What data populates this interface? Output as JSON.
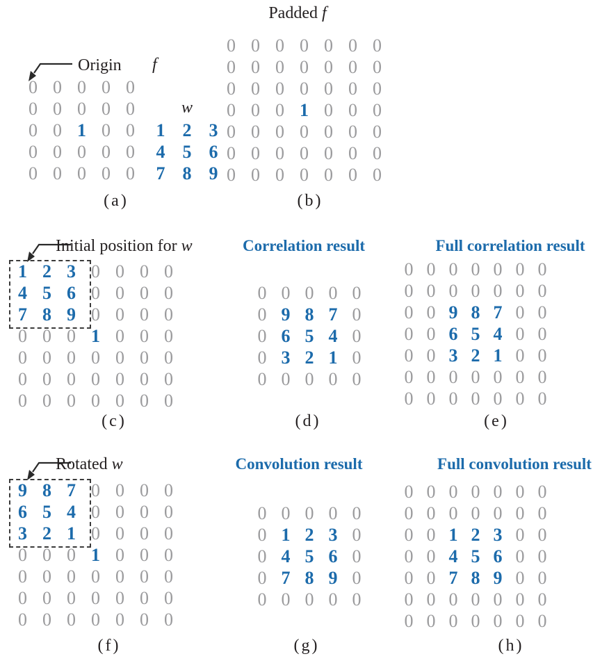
{
  "colors": {
    "accent_blue": "#1c6bab",
    "zero_gray": "#9b9b9d",
    "text_black": "#231f20"
  },
  "panel_a": {
    "origin_label": "Origin",
    "f_label": "f",
    "w_label": "w",
    "caption": "(a)",
    "f_grid": [
      [
        "0",
        "0",
        "0",
        "0",
        "0"
      ],
      [
        "0",
        "0",
        "0",
        "0",
        "0"
      ],
      [
        "0",
        "0",
        "1",
        "0",
        "0"
      ],
      [
        "0",
        "0",
        "0",
        "0",
        "0"
      ],
      [
        "0",
        "0",
        "0",
        "0",
        "0"
      ]
    ],
    "w_grid": [
      [
        "1",
        "2",
        "3"
      ],
      [
        "4",
        "5",
        "6"
      ],
      [
        "7",
        "8",
        "9"
      ]
    ]
  },
  "panel_b": {
    "title_roman": "Padded",
    "title_italic": "f",
    "caption": "(b)",
    "grid": [
      [
        "0",
        "0",
        "0",
        "0",
        "0",
        "0",
        "0"
      ],
      [
        "0",
        "0",
        "0",
        "0",
        "0",
        "0",
        "0"
      ],
      [
        "0",
        "0",
        "0",
        "0",
        "0",
        "0",
        "0"
      ],
      [
        "0",
        "0",
        "0",
        "1",
        "0",
        "0",
        "0"
      ],
      [
        "0",
        "0",
        "0",
        "0",
        "0",
        "0",
        "0"
      ],
      [
        "0",
        "0",
        "0",
        "0",
        "0",
        "0",
        "0"
      ],
      [
        "0",
        "0",
        "0",
        "0",
        "0",
        "0",
        "0"
      ]
    ]
  },
  "panel_c": {
    "label_roman": "Initial position for",
    "label_italic": "w",
    "caption": "(c)",
    "grid": [
      [
        "1",
        "2",
        "3",
        "0",
        "0",
        "0",
        "0"
      ],
      [
        "4",
        "5",
        "6",
        "0",
        "0",
        "0",
        "0"
      ],
      [
        "7",
        "8",
        "9",
        "0",
        "0",
        "0",
        "0"
      ],
      [
        "0",
        "0",
        "0",
        "1",
        "0",
        "0",
        "0"
      ],
      [
        "0",
        "0",
        "0",
        "0",
        "0",
        "0",
        "0"
      ],
      [
        "0",
        "0",
        "0",
        "0",
        "0",
        "0",
        "0"
      ],
      [
        "0",
        "0",
        "0",
        "0",
        "0",
        "0",
        "0"
      ]
    ]
  },
  "panel_d": {
    "title": "Correlation result",
    "caption": "(d)",
    "grid": [
      [
        "0",
        "0",
        "0",
        "0",
        "0"
      ],
      [
        "0",
        "9",
        "8",
        "7",
        "0"
      ],
      [
        "0",
        "6",
        "5",
        "4",
        "0"
      ],
      [
        "0",
        "3",
        "2",
        "1",
        "0"
      ],
      [
        "0",
        "0",
        "0",
        "0",
        "0"
      ]
    ]
  },
  "panel_e": {
    "title": "Full correlation result",
    "caption": "(e)",
    "grid": [
      [
        "0",
        "0",
        "0",
        "0",
        "0",
        "0",
        "0"
      ],
      [
        "0",
        "0",
        "0",
        "0",
        "0",
        "0",
        "0"
      ],
      [
        "0",
        "0",
        "9",
        "8",
        "7",
        "0",
        "0"
      ],
      [
        "0",
        "0",
        "6",
        "5",
        "4",
        "0",
        "0"
      ],
      [
        "0",
        "0",
        "3",
        "2",
        "1",
        "0",
        "0"
      ],
      [
        "0",
        "0",
        "0",
        "0",
        "0",
        "0",
        "0"
      ],
      [
        "0",
        "0",
        "0",
        "0",
        "0",
        "0",
        "0"
      ]
    ]
  },
  "panel_f": {
    "label_roman": "Rotated",
    "label_italic": "w",
    "caption": "(f)",
    "grid": [
      [
        "9",
        "8",
        "7",
        "0",
        "0",
        "0",
        "0"
      ],
      [
        "6",
        "5",
        "4",
        "0",
        "0",
        "0",
        "0"
      ],
      [
        "3",
        "2",
        "1",
        "0",
        "0",
        "0",
        "0"
      ],
      [
        "0",
        "0",
        "0",
        "1",
        "0",
        "0",
        "0"
      ],
      [
        "0",
        "0",
        "0",
        "0",
        "0",
        "0",
        "0"
      ],
      [
        "0",
        "0",
        "0",
        "0",
        "0",
        "0",
        "0"
      ],
      [
        "0",
        "0",
        "0",
        "0",
        "0",
        "0",
        "0"
      ]
    ]
  },
  "panel_g": {
    "title": "Convolution result",
    "caption": "(g)",
    "grid": [
      [
        "0",
        "0",
        "0",
        "0",
        "0"
      ],
      [
        "0",
        "1",
        "2",
        "3",
        "0"
      ],
      [
        "0",
        "4",
        "5",
        "6",
        "0"
      ],
      [
        "0",
        "7",
        "8",
        "9",
        "0"
      ],
      [
        "0",
        "0",
        "0",
        "0",
        "0"
      ]
    ]
  },
  "panel_h": {
    "title": "Full convolution result",
    "caption": "(h)",
    "grid": [
      [
        "0",
        "0",
        "0",
        "0",
        "0",
        "0",
        "0"
      ],
      [
        "0",
        "0",
        "0",
        "0",
        "0",
        "0",
        "0"
      ],
      [
        "0",
        "0",
        "1",
        "2",
        "3",
        "0",
        "0"
      ],
      [
        "0",
        "0",
        "4",
        "5",
        "6",
        "0",
        "0"
      ],
      [
        "0",
        "0",
        "7",
        "8",
        "9",
        "0",
        "0"
      ],
      [
        "0",
        "0",
        "0",
        "0",
        "0",
        "0",
        "0"
      ],
      [
        "0",
        "0",
        "0",
        "0",
        "0",
        "0",
        "0"
      ]
    ]
  }
}
